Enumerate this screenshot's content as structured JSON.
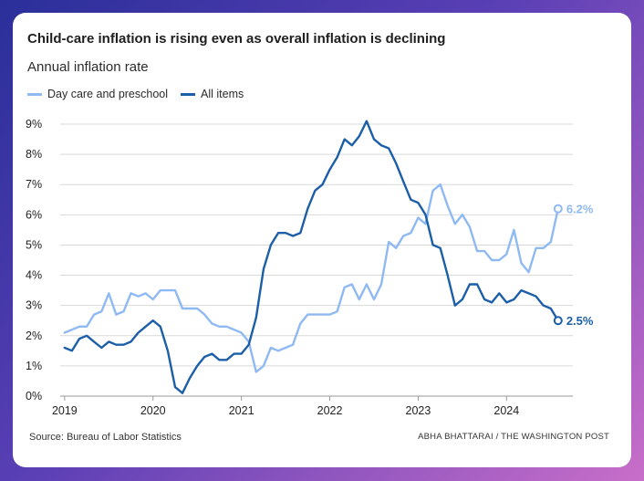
{
  "header": {
    "title": "Child-care inflation is rising even as overall inflation is declining",
    "subtitle": "Annual inflation rate"
  },
  "footer": {
    "source": "Source: Bureau of Labor Statistics",
    "credit": "ABHA BHATTARAI / THE WASHINGTON POST"
  },
  "colors": {
    "daycare": "#8fb9f2",
    "all_items": "#1c5fa8",
    "grid": "#d9d9d9",
    "axis_text": "#222222"
  },
  "chart_data": {
    "type": "line",
    "title": "Child-care inflation is rising even as overall inflation is declining",
    "subtitle": "Annual inflation rate",
    "xlabel": "",
    "ylabel": "",
    "xlim": [
      2018.95,
      2024.75
    ],
    "ylim": [
      0,
      9
    ],
    "y_ticks": [
      0,
      1,
      2,
      3,
      4,
      5,
      6,
      7,
      8,
      9
    ],
    "y_tick_labels": [
      "0%",
      "1%",
      "2%",
      "3%",
      "4%",
      "5%",
      "6%",
      "7%",
      "8%",
      "9%"
    ],
    "x_ticks": [
      2019,
      2020,
      2021,
      2022,
      2023,
      2024
    ],
    "x_tick_labels": [
      "2019",
      "2020",
      "2021",
      "2022",
      "2023",
      "2024"
    ],
    "grid": "horizontal",
    "legend": "top-left",
    "series": [
      {
        "name": "Day care and preschool",
        "color": "#8fb9f2",
        "end_label": "6.2%",
        "x": [
          2019.0,
          2019.083,
          2019.167,
          2019.25,
          2019.333,
          2019.417,
          2019.5,
          2019.583,
          2019.667,
          2019.75,
          2019.833,
          2019.917,
          2020.0,
          2020.083,
          2020.167,
          2020.25,
          2020.333,
          2020.417,
          2020.5,
          2020.583,
          2020.667,
          2020.75,
          2020.833,
          2020.917,
          2021.0,
          2021.083,
          2021.167,
          2021.25,
          2021.333,
          2021.417,
          2021.5,
          2021.583,
          2021.667,
          2021.75,
          2021.833,
          2021.917,
          2022.0,
          2022.083,
          2022.167,
          2022.25,
          2022.333,
          2022.417,
          2022.5,
          2022.583,
          2022.667,
          2022.75,
          2022.833,
          2022.917,
          2023.0,
          2023.083,
          2023.167,
          2023.25,
          2023.333,
          2023.417,
          2023.5,
          2023.583,
          2023.667,
          2023.75,
          2023.833,
          2023.917,
          2024.0,
          2024.083,
          2024.167,
          2024.25,
          2024.333,
          2024.417,
          2024.5,
          2024.583
        ],
        "y": [
          2.1,
          2.2,
          2.3,
          2.3,
          2.7,
          2.8,
          3.4,
          2.7,
          2.8,
          3.4,
          3.3,
          3.4,
          3.2,
          3.5,
          3.5,
          3.5,
          2.9,
          2.9,
          2.9,
          2.7,
          2.4,
          2.3,
          2.3,
          2.2,
          2.1,
          1.8,
          0.8,
          1.0,
          1.6,
          1.5,
          1.6,
          1.7,
          2.4,
          2.7,
          2.7,
          2.7,
          2.7,
          2.8,
          3.6,
          3.7,
          3.2,
          3.7,
          3.2,
          3.7,
          5.1,
          4.9,
          5.3,
          5.4,
          5.9,
          5.7,
          6.8,
          7.0,
          6.3,
          5.7,
          6.0,
          5.6,
          4.8,
          4.8,
          4.5,
          4.5,
          4.7,
          5.5,
          4.4,
          4.1,
          4.9,
          4.9,
          5.1,
          6.2
        ]
      },
      {
        "name": "All items",
        "color": "#1c5fa8",
        "end_label": "2.5%",
        "x": [
          2019.0,
          2019.083,
          2019.167,
          2019.25,
          2019.333,
          2019.417,
          2019.5,
          2019.583,
          2019.667,
          2019.75,
          2019.833,
          2019.917,
          2020.0,
          2020.083,
          2020.167,
          2020.25,
          2020.333,
          2020.417,
          2020.5,
          2020.583,
          2020.667,
          2020.75,
          2020.833,
          2020.917,
          2021.0,
          2021.083,
          2021.167,
          2021.25,
          2021.333,
          2021.417,
          2021.5,
          2021.583,
          2021.667,
          2021.75,
          2021.833,
          2021.917,
          2022.0,
          2022.083,
          2022.167,
          2022.25,
          2022.333,
          2022.417,
          2022.5,
          2022.583,
          2022.667,
          2022.75,
          2022.833,
          2022.917,
          2023.0,
          2023.083,
          2023.167,
          2023.25,
          2023.333,
          2023.417,
          2023.5,
          2023.583,
          2023.667,
          2023.75,
          2023.833,
          2023.917,
          2024.0,
          2024.083,
          2024.167,
          2024.25,
          2024.333,
          2024.417,
          2024.5,
          2024.583
        ],
        "y": [
          1.6,
          1.5,
          1.9,
          2.0,
          1.8,
          1.6,
          1.8,
          1.7,
          1.7,
          1.8,
          2.1,
          2.3,
          2.5,
          2.3,
          1.5,
          0.3,
          0.1,
          0.6,
          1.0,
          1.3,
          1.4,
          1.2,
          1.2,
          1.4,
          1.4,
          1.7,
          2.6,
          4.2,
          5.0,
          5.4,
          5.4,
          5.3,
          5.4,
          6.2,
          6.8,
          7.0,
          7.5,
          7.9,
          8.5,
          8.3,
          8.6,
          9.1,
          8.5,
          8.3,
          8.2,
          7.7,
          7.1,
          6.5,
          6.4,
          6.0,
          5.0,
          4.9,
          4.0,
          3.0,
          3.2,
          3.7,
          3.7,
          3.2,
          3.1,
          3.4,
          3.1,
          3.2,
          3.5,
          3.4,
          3.3,
          3.0,
          2.9,
          2.5
        ]
      }
    ]
  }
}
